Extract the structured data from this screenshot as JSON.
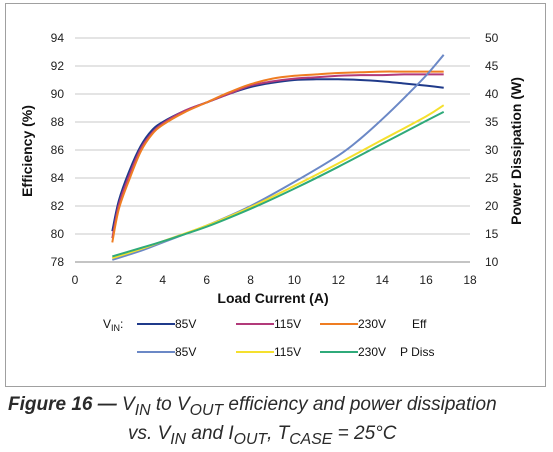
{
  "chart_data": {
    "type": "line",
    "xlabel": "Load Current (A)",
    "ylabel_left": "Efficiency (%)",
    "ylabel_right": "Power Dissipation (W)",
    "xlim": [
      0,
      18
    ],
    "ylim_left": [
      78,
      94
    ],
    "ylim_right": [
      10,
      50
    ],
    "x_ticks": [
      "0",
      "2",
      "4",
      "6",
      "8",
      "10",
      "12",
      "14",
      "16",
      "18"
    ],
    "y_ticks_left": [
      "78",
      "80",
      "82",
      "84",
      "86",
      "88",
      "90",
      "92",
      "94"
    ],
    "y_ticks_right": [
      "10",
      "15",
      "20",
      "25",
      "30",
      "35",
      "40",
      "45",
      "50"
    ],
    "grid": "horizontal",
    "legend": {
      "vin_label": "V",
      "vin_sub": "IN",
      "vin_colon": ":",
      "eff_group": "Eff",
      "pdiss_group": "P Diss"
    },
    "series": [
      {
        "name": "85V",
        "group": "Eff",
        "axis": "left",
        "color": "#1f3a8a",
        "x": [
          1.7,
          2.0,
          2.5,
          3.0,
          3.5,
          4.0,
          5.0,
          6.0,
          7.0,
          8.0,
          9.0,
          10.0,
          11.0,
          12.0,
          13.0,
          14.0,
          15.0,
          16.0,
          16.8
        ],
        "y": [
          80.2,
          82.4,
          84.6,
          86.3,
          87.4,
          88.0,
          88.8,
          89.4,
          90.0,
          90.5,
          90.8,
          91.0,
          91.05,
          91.05,
          91.0,
          90.9,
          90.75,
          90.6,
          90.45
        ]
      },
      {
        "name": "115V",
        "group": "Eff",
        "axis": "left",
        "color": "#b23a7a",
        "x": [
          1.7,
          2.0,
          2.5,
          3.0,
          3.5,
          4.0,
          5.0,
          6.0,
          7.0,
          8.0,
          9.0,
          10.0,
          11.0,
          12.0,
          13.0,
          14.0,
          15.0,
          16.0,
          16.8
        ],
        "y": [
          79.7,
          82.1,
          84.3,
          86.1,
          87.2,
          87.9,
          88.8,
          89.4,
          90.0,
          90.6,
          90.9,
          91.1,
          91.2,
          91.3,
          91.35,
          91.35,
          91.4,
          91.4,
          91.4
        ]
      },
      {
        "name": "230V",
        "group": "Eff",
        "axis": "left",
        "color": "#ef7d22",
        "x": [
          1.7,
          2.0,
          2.5,
          3.0,
          3.5,
          4.0,
          5.0,
          6.0,
          7.0,
          8.0,
          9.0,
          10.0,
          11.0,
          12.0,
          13.0,
          14.0,
          15.0,
          16.0,
          16.8
        ],
        "y": [
          79.4,
          81.8,
          84.0,
          85.9,
          87.1,
          87.8,
          88.7,
          89.4,
          90.1,
          90.7,
          91.1,
          91.3,
          91.4,
          91.5,
          91.55,
          91.6,
          91.6,
          91.6,
          91.6
        ]
      },
      {
        "name": "85V",
        "group": "P Diss",
        "axis": "right",
        "color": "#6b88c6",
        "x": [
          1.7,
          3.0,
          4.0,
          6.0,
          8.0,
          10.0,
          12.0,
          13.0,
          14.0,
          15.0,
          16.0,
          16.8
        ],
        "y": [
          10.4,
          12.0,
          13.5,
          16.5,
          20.0,
          24.3,
          29.0,
          32.0,
          35.5,
          39.3,
          43.3,
          47.0
        ]
      },
      {
        "name": "115V",
        "group": "P Diss",
        "axis": "right",
        "color": "#f5e02e",
        "x": [
          1.7,
          3.0,
          4.0,
          6.0,
          8.0,
          10.0,
          12.0,
          14.0,
          16.0,
          16.8
        ],
        "y": [
          10.7,
          12.3,
          13.7,
          16.5,
          19.8,
          23.6,
          27.6,
          31.8,
          36.0,
          38.0
        ]
      },
      {
        "name": "230V",
        "group": "P Diss",
        "axis": "right",
        "color": "#2faa7a",
        "x": [
          1.7,
          3.0,
          4.0,
          6.0,
          8.0,
          10.0,
          12.0,
          14.0,
          16.0,
          16.8
        ],
        "y": [
          11.0,
          12.5,
          13.7,
          16.3,
          19.5,
          23.1,
          27.0,
          31.1,
          35.2,
          36.8
        ]
      }
    ]
  },
  "caption": {
    "fig": "Figure 16",
    "dash": " — ",
    "v1": "V",
    "v1_sub": "IN",
    "to": " to ",
    "v2": "V",
    "v2_sub": "OUT",
    "rest1": " efficiency and power dissipation",
    "line2_a": "vs. ",
    "v3": "V",
    "v3_sub": "IN",
    "and": " and ",
    "i": "I",
    "i_sub": "OUT",
    "comma": ", ",
    "t": "T",
    "t_sub": "CASE",
    "rest2": " = 25°C"
  }
}
